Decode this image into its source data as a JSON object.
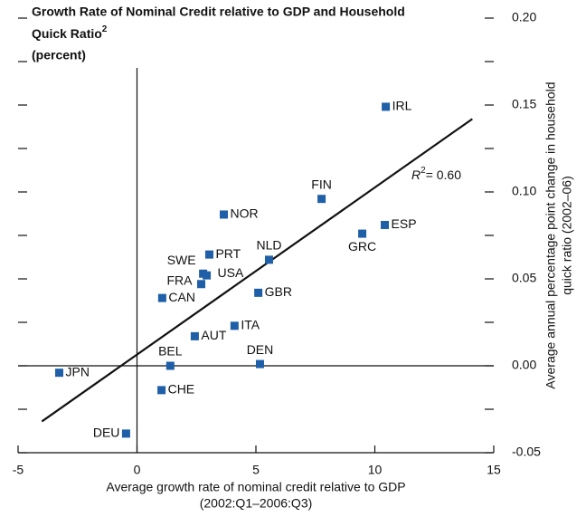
{
  "chart_data": {
    "type": "scatter",
    "title_lines": [
      "Growth Rate of Nominal Credit relative to GDP and Household",
      "Quick Ratio"
    ],
    "title_sup": "2",
    "subtitle": "(percent)",
    "x_label": [
      "Average growth rate of nominal credit relative to GDP",
      "(2002:Q1–2006:Q3)"
    ],
    "y_label": [
      "Average annual percentage point change in household",
      "quick ratio (2002–06)"
    ],
    "categories": [
      "IRL",
      "FIN",
      "ESP",
      "GRC",
      "NOR",
      "PRT",
      "NLD",
      "SWE",
      "USA",
      "FRA",
      "CAN",
      "GBR",
      "ITA",
      "AUT",
      "BEL",
      "DEN",
      "JPN",
      "CHE",
      "DEU"
    ],
    "x": [
      10.46,
      7.76,
      10.42,
      9.47,
      3.65,
      3.04,
      5.55,
      2.78,
      2.93,
      2.7,
      1.06,
      5.1,
      4.1,
      2.43,
      1.4,
      5.17,
      -3.27,
      1.03,
      -0.46
    ],
    "values": [
      0.149,
      0.096,
      0.081,
      0.076,
      0.087,
      0.064,
      0.061,
      0.053,
      0.052,
      0.047,
      0.039,
      0.042,
      0.023,
      0.017,
      0.0,
      0.001,
      -0.004,
      -0.014,
      -0.039
    ],
    "color": "#1f5fa8",
    "trendline": {
      "x": [
        -4,
        14.1
      ],
      "y": [
        -0.032,
        0.142
      ]
    },
    "annotation": {
      "base": "R",
      "sup": "2",
      "rest": "= 0.60"
    },
    "xlim": [
      -5,
      15
    ],
    "xticks": [
      -5,
      0,
      5,
      10,
      15
    ],
    "ylim": [
      -0.05,
      0.2
    ],
    "yticks": [
      {
        "value": -0.05,
        "label": "-0.05"
      },
      {
        "value": 0,
        "label": "0.00"
      },
      {
        "value": 0.05,
        "label": "0.05"
      },
      {
        "value": 0.1,
        "label": "0.10"
      },
      {
        "value": 0.15,
        "label": "0.15"
      },
      {
        "value": 0.2,
        "label": "0.20"
      }
    ],
    "yminor_ticks": [
      -0.025,
      0.025,
      0.075,
      0.125,
      0.175
    ]
  }
}
